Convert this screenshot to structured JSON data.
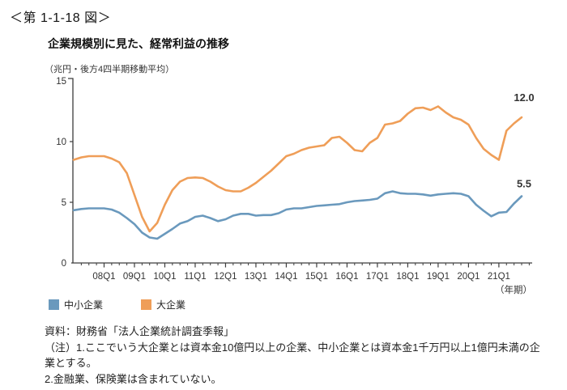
{
  "figure_label": "＜第 1-1-18 図＞",
  "chart_data": {
    "type": "line",
    "title": "企業規模別に見た、経常利益の推移",
    "unit_label": "（兆円・後方4四半期移動平均）",
    "xaxis_unit": "（年期）",
    "x_range_quarters": "2007Q1-2021Q4",
    "x_tick_labels": [
      "08Q1",
      "09Q1",
      "10Q1",
      "11Q1",
      "12Q1",
      "13Q1",
      "14Q1",
      "15Q1",
      "16Q1",
      "17Q1",
      "18Q1",
      "19Q1",
      "20Q1",
      "21Q1"
    ],
    "y_ticks": [
      0,
      5,
      10,
      15
    ],
    "ylim": [
      0,
      15
    ],
    "grid": false,
    "legend_position": "bottom-left",
    "series": [
      {
        "name": "中小企業",
        "color": "#6a99bd",
        "end_label": "5.5",
        "values": [
          4.35,
          4.45,
          4.5,
          4.5,
          4.5,
          4.4,
          4.15,
          3.7,
          3.2,
          2.5,
          2.1,
          2.0,
          2.4,
          2.8,
          3.25,
          3.45,
          3.8,
          3.9,
          3.7,
          3.45,
          3.6,
          3.9,
          4.05,
          4.05,
          3.9,
          3.95,
          3.95,
          4.1,
          4.4,
          4.5,
          4.5,
          4.6,
          4.7,
          4.75,
          4.8,
          4.85,
          5.0,
          5.1,
          5.15,
          5.2,
          5.3,
          5.75,
          5.9,
          5.75,
          5.7,
          5.7,
          5.65,
          5.55,
          5.65,
          5.7,
          5.75,
          5.7,
          5.5,
          4.8,
          4.3,
          3.85,
          4.15,
          4.2,
          4.9,
          5.5
        ]
      },
      {
        "name": "大企業",
        "color": "#ef9e58",
        "end_label": "12.0",
        "values": [
          8.5,
          8.7,
          8.8,
          8.8,
          8.8,
          8.6,
          8.3,
          7.4,
          5.6,
          3.8,
          2.6,
          3.3,
          4.8,
          6.0,
          6.7,
          7.0,
          7.05,
          7.0,
          6.7,
          6.3,
          6.0,
          5.9,
          5.9,
          6.2,
          6.6,
          7.1,
          7.6,
          8.2,
          8.8,
          9.0,
          9.3,
          9.5,
          9.6,
          9.7,
          10.3,
          10.4,
          9.9,
          9.3,
          9.2,
          9.9,
          10.3,
          11.4,
          11.5,
          11.7,
          12.3,
          12.75,
          12.8,
          12.6,
          12.9,
          12.4,
          12.0,
          11.8,
          11.4,
          10.3,
          9.4,
          8.9,
          8.5,
          10.9,
          11.5,
          12.0
        ]
      }
    ],
    "legend": [
      {
        "label": "中小企業"
      },
      {
        "label": "大企業"
      }
    ]
  },
  "notes": {
    "lines": [
      "資料：財務省「法人企業統計調査季報」",
      "（注）1.ここでいう大企業とは資本金10億円以上の企業、中小企業とは資本金1千万円以上1億円未満の企",
      "業とする。",
      "2.金融業、保険業は含まれていない。"
    ]
  }
}
